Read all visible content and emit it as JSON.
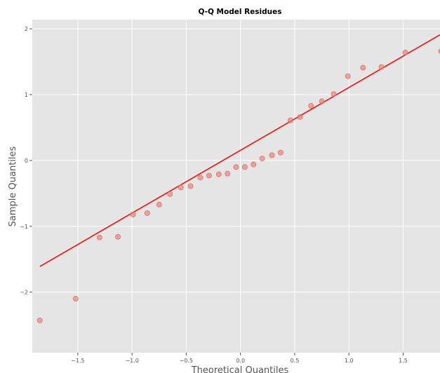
{
  "chart_data": {
    "type": "scatter",
    "title": "Q-Q Model Residues",
    "xlabel": "Theoretical Quantiles",
    "ylabel": "Sample Quantiles",
    "xlim": [
      -1.92,
      1.84
    ],
    "ylim": [
      -2.92,
      2.14
    ],
    "xticks": [
      -1.5,
      -1.0,
      -0.5,
      0.0,
      0.5,
      1.0,
      1.5
    ],
    "xtick_labels": [
      "−1.5",
      "−1.0",
      "−0.5",
      "0.0",
      "0.5",
      "1.0",
      "1.5"
    ],
    "yticks": [
      -2,
      -1,
      0,
      1,
      2
    ],
    "ytick_labels": [
      "−2",
      "−1",
      "0",
      "1",
      "2"
    ],
    "grid": true,
    "background_color": "#e5e5e5",
    "grid_color": "#ffffff",
    "point_color": "#e8857a",
    "line_color": "#ee1111",
    "series": [
      {
        "kind": "points",
        "x": [
          -1.85,
          -1.52,
          -1.3,
          -1.13,
          -0.99,
          -0.86,
          -0.75,
          -0.65,
          -0.55,
          -0.46,
          -0.37,
          -0.29,
          -0.2,
          -0.12,
          -0.04,
          0.04,
          0.12,
          0.2,
          0.29,
          0.37,
          0.46,
          0.55,
          0.65,
          0.75,
          0.86,
          0.99,
          1.13,
          1.3,
          1.52,
          1.85
        ],
        "y": [
          -2.43,
          -2.1,
          -1.17,
          -1.16,
          -0.82,
          -0.8,
          -0.67,
          -0.51,
          -0.41,
          -0.39,
          -0.26,
          -0.23,
          -0.21,
          -0.2,
          -0.1,
          -0.1,
          -0.06,
          0.03,
          0.08,
          0.12,
          0.61,
          0.66,
          0.83,
          0.9,
          1.01,
          1.28,
          1.41,
          1.42,
          1.64,
          1.66
        ]
      },
      {
        "kind": "line",
        "x": [
          -1.85,
          1.84
        ],
        "y": [
          -1.61,
          1.91
        ]
      }
    ]
  }
}
